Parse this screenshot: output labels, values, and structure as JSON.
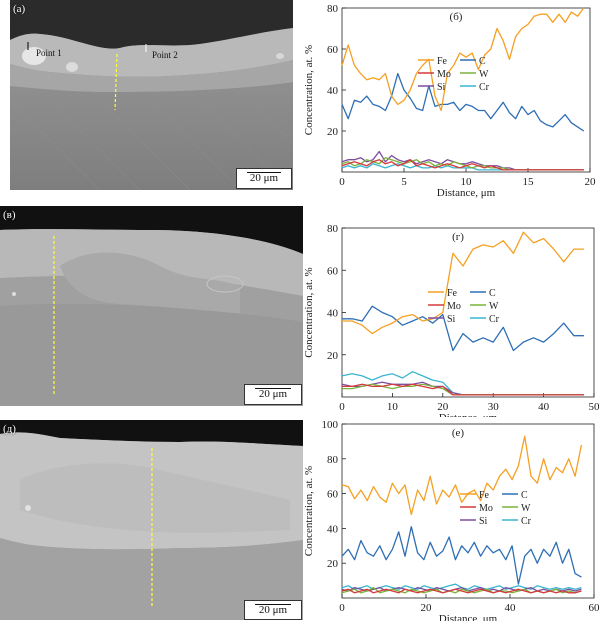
{
  "micrographs": [
    {
      "label": "(а)",
      "scale": "20 μm",
      "points": [
        "Point 1",
        "Point 2"
      ]
    },
    {
      "label": "(в)",
      "scale": "20 μm",
      "points": []
    },
    {
      "label": "(д)",
      "scale": "20 μm",
      "points": []
    }
  ],
  "colors": {
    "Fe": "#f5a023",
    "C": "#2e6fb5",
    "Mo": "#d33b3b",
    "W": "#7ab33a",
    "Si": "#7d4ea0",
    "Cr": "#39b5d0",
    "marker": "#ffff33"
  },
  "chart_data": [
    {
      "type": "line",
      "title": "(б)",
      "xlabel": "Distance, μm",
      "ylabel": "Concentration, at. %",
      "xlim": [
        0,
        20
      ],
      "ylim": [
        0,
        80
      ],
      "xticks": [
        0,
        5,
        10,
        15,
        20
      ],
      "yticks": [
        20,
        40,
        60,
        80
      ],
      "legend_position": "middle-right",
      "grid": false,
      "x": [
        0,
        0.5,
        1,
        1.5,
        2,
        2.5,
        3,
        3.5,
        4,
        4.5,
        5,
        5.5,
        6,
        6.5,
        7,
        7.5,
        8,
        8.5,
        9,
        9.5,
        10,
        10.5,
        11,
        11.5,
        12,
        12.5,
        13,
        13.5,
        14,
        14.5,
        15,
        15.5,
        16,
        16.5,
        17,
        17.5,
        18,
        18.5,
        19,
        19.5
      ],
      "series": [
        {
          "name": "Fe",
          "values": [
            52,
            62,
            52,
            48,
            45,
            46,
            45,
            48,
            37,
            33,
            35,
            40,
            48,
            52,
            55,
            37,
            30,
            48,
            52,
            58,
            56,
            58,
            50,
            57,
            60,
            70,
            64,
            55,
            66,
            70,
            72,
            76,
            77,
            77,
            73,
            77,
            73,
            78,
            76,
            80
          ]
        },
        {
          "name": "C",
          "values": [
            33,
            26,
            35,
            34,
            37,
            33,
            32,
            30,
            37,
            48,
            40,
            36,
            31,
            30,
            42,
            32,
            33,
            33,
            34,
            30,
            33,
            32,
            30,
            30,
            26,
            30,
            34,
            29,
            26,
            32,
            28,
            30,
            25,
            23,
            22,
            25,
            28,
            24,
            22,
            20
          ]
        },
        {
          "name": "Mo",
          "values": [
            3,
            4,
            5,
            4,
            3,
            5,
            6,
            4,
            5,
            3,
            4,
            6,
            3,
            4,
            3,
            2,
            3,
            4,
            3,
            2,
            3,
            4,
            3,
            2,
            3,
            2,
            1,
            1,
            1,
            1,
            1,
            1,
            1,
            1,
            1,
            1,
            1,
            1,
            1,
            1
          ]
        },
        {
          "name": "W",
          "values": [
            4,
            5,
            3,
            4,
            6,
            5,
            4,
            7,
            6,
            5,
            4,
            5,
            6,
            4,
            5,
            3,
            4,
            3,
            5,
            4,
            3,
            2,
            3,
            3,
            2,
            2,
            2,
            1,
            1,
            1,
            1,
            1,
            1,
            1,
            1,
            1,
            1,
            1,
            1,
            1
          ]
        },
        {
          "name": "Si",
          "values": [
            5,
            6,
            6,
            7,
            5,
            6,
            10,
            5,
            8,
            6,
            5,
            6,
            4,
            5,
            6,
            5,
            4,
            6,
            5,
            4,
            4,
            5,
            4,
            3,
            3,
            3,
            2,
            2,
            1,
            1,
            1,
            1,
            1,
            1,
            1,
            1,
            1,
            1,
            1,
            1
          ]
        },
        {
          "name": "Cr",
          "values": [
            2,
            3,
            2,
            3,
            2,
            4,
            3,
            2,
            3,
            4,
            3,
            2,
            3,
            2,
            2,
            3,
            2,
            3,
            2,
            2,
            2,
            2,
            1,
            1,
            1,
            1,
            1,
            1,
            1,
            1,
            1,
            1,
            1,
            1,
            1,
            1,
            1,
            1,
            1,
            1
          ]
        }
      ]
    },
    {
      "type": "line",
      "title": "(г)",
      "xlabel": "Distance, μm",
      "ylabel": "Concentration, at. %",
      "xlim": [
        0,
        50
      ],
      "ylim": [
        0,
        80
      ],
      "xticks": [
        0,
        10,
        20,
        30,
        40,
        50
      ],
      "yticks": [
        20,
        40,
        60,
        80
      ],
      "legend_position": "middle-right",
      "grid": false,
      "x": [
        0,
        2,
        4,
        6,
        8,
        10,
        12,
        14,
        16,
        18,
        20,
        22,
        24,
        26,
        28,
        30,
        32,
        34,
        36,
        38,
        40,
        42,
        44,
        46,
        48
      ],
      "series": [
        {
          "name": "Fe",
          "values": [
            36,
            36,
            34,
            30,
            33,
            35,
            38,
            39,
            36,
            37,
            40,
            68,
            62,
            70,
            72,
            71,
            74,
            68,
            78,
            73,
            75,
            70,
            64,
            70,
            70
          ]
        },
        {
          "name": "C",
          "values": [
            37,
            37,
            36,
            43,
            40,
            38,
            34,
            36,
            38,
            35,
            39,
            22,
            30,
            26,
            28,
            26,
            33,
            22,
            26,
            28,
            26,
            30,
            35,
            29,
            29
          ]
        },
        {
          "name": "Mo",
          "values": [
            5,
            5,
            6,
            5,
            5,
            6,
            5,
            6,
            5,
            4,
            5,
            1,
            1,
            1,
            1,
            1,
            1,
            1,
            1,
            1,
            1,
            1,
            1,
            1,
            1
          ]
        },
        {
          "name": "W",
          "values": [
            4,
            4,
            5,
            6,
            5,
            4,
            5,
            5,
            6,
            5,
            4,
            1,
            1,
            1,
            1,
            1,
            1,
            1,
            1,
            1,
            1,
            1,
            1,
            1,
            1
          ]
        },
        {
          "name": "Si",
          "values": [
            6,
            5,
            5,
            6,
            7,
            6,
            6,
            6,
            7,
            5,
            5,
            2,
            1,
            1,
            1,
            1,
            1,
            1,
            1,
            1,
            1,
            1,
            1,
            1,
            1
          ]
        },
        {
          "name": "Cr",
          "values": [
            10,
            11,
            10,
            8,
            10,
            11,
            9,
            12,
            10,
            8,
            7,
            2,
            1,
            1,
            1,
            1,
            1,
            1,
            1,
            1,
            1,
            1,
            1,
            1,
            1
          ]
        }
      ]
    },
    {
      "type": "line",
      "title": "(е)",
      "xlabel": "Distance, μm",
      "ylabel": "Concentration, at. %",
      "xlim": [
        0,
        60
      ],
      "ylim": [
        0,
        100
      ],
      "xticks": [
        0,
        20,
        40,
        60
      ],
      "yticks": [
        20,
        40,
        60,
        80,
        100
      ],
      "legend_position": "lower-middle",
      "grid": false,
      "x": [
        0,
        1.5,
        3,
        4.5,
        6,
        7.5,
        9,
        10.5,
        12,
        13.5,
        15,
        16.5,
        18,
        19.5,
        21,
        22.5,
        24,
        25.5,
        27,
        28.5,
        30,
        31.5,
        33,
        34.5,
        36,
        37.5,
        39,
        40.5,
        42,
        43.5,
        45,
        46.5,
        48,
        49.5,
        51,
        52.5,
        54,
        55.5,
        57
      ],
      "series": [
        {
          "name": "Fe",
          "values": [
            65,
            64,
            57,
            62,
            56,
            64,
            58,
            55,
            66,
            60,
            65,
            48,
            62,
            56,
            70,
            54,
            62,
            58,
            65,
            55,
            60,
            62,
            56,
            66,
            62,
            70,
            74,
            68,
            76,
            93,
            70,
            66,
            80,
            68,
            75,
            72,
            80,
            70,
            88
          ]
        },
        {
          "name": "C",
          "values": [
            24,
            28,
            22,
            33,
            26,
            24,
            30,
            22,
            28,
            38,
            24,
            41,
            26,
            22,
            32,
            24,
            27,
            35,
            22,
            30,
            26,
            32,
            24,
            30,
            26,
            28,
            22,
            30,
            8,
            24,
            28,
            20,
            28,
            24,
            32,
            20,
            28,
            14,
            12
          ]
        },
        {
          "name": "Mo",
          "values": [
            4,
            5,
            3,
            4,
            5,
            3,
            4,
            5,
            4,
            3,
            5,
            4,
            3,
            4,
            5,
            4,
            3,
            4,
            5,
            4,
            3,
            4,
            5,
            4,
            3,
            4,
            3,
            4,
            5,
            4,
            3,
            4,
            3,
            4,
            3,
            4,
            3,
            3,
            4
          ]
        },
        {
          "name": "W",
          "values": [
            3,
            4,
            5,
            3,
            4,
            6,
            3,
            4,
            5,
            4,
            3,
            5,
            4,
            3,
            4,
            5,
            3,
            4,
            3,
            5,
            4,
            3,
            4,
            5,
            3,
            4,
            4,
            3,
            4,
            5,
            3,
            4,
            3,
            4,
            5,
            3,
            4,
            3,
            4
          ]
        },
        {
          "name": "Si",
          "values": [
            5,
            4,
            6,
            5,
            4,
            5,
            6,
            4,
            5,
            6,
            5,
            4,
            6,
            5,
            4,
            6,
            5,
            4,
            5,
            6,
            4,
            5,
            6,
            4,
            5,
            4,
            6,
            5,
            4,
            5,
            6,
            4,
            5,
            4,
            5,
            4,
            5,
            4,
            5
          ]
        },
        {
          "name": "Cr",
          "values": [
            6,
            7,
            5,
            6,
            7,
            5,
            6,
            7,
            6,
            5,
            7,
            6,
            5,
            7,
            6,
            5,
            6,
            7,
            8,
            6,
            5,
            7,
            6,
            5,
            6,
            7,
            5,
            6,
            7,
            6,
            5,
            7,
            6,
            5,
            6,
            5,
            6,
            5,
            6
          ]
        }
      ]
    }
  ]
}
